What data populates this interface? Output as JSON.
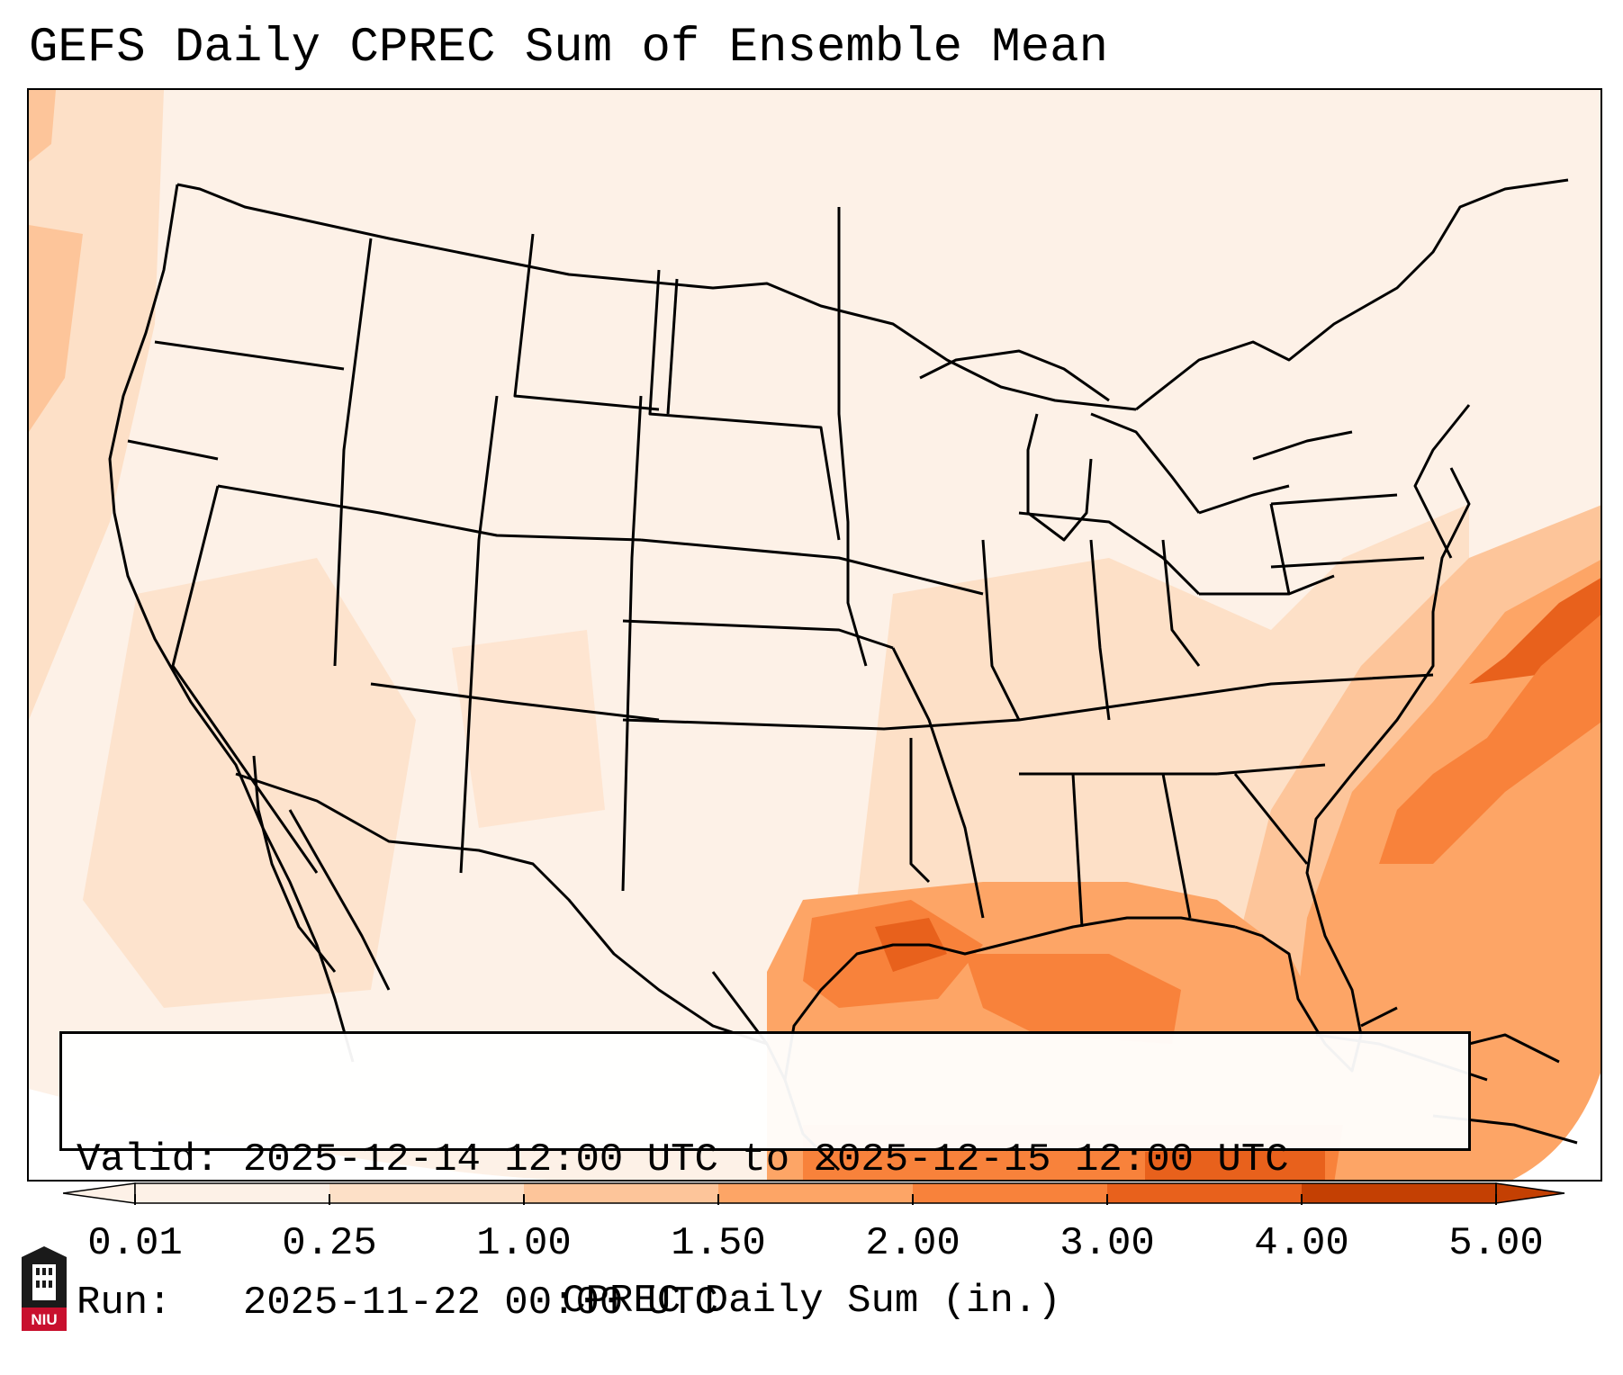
{
  "title": "GEFS Daily CPREC Sum of Ensemble Mean",
  "info": {
    "valid_label": "Valid:",
    "valid_value": "2025-12-14 12:00 UTC to 2025-12-15 12:00 UTC",
    "run_label": "Run:",
    "run_value": "2025-11-22 00:00 UTC"
  },
  "colorbar": {
    "label": "CPREC Daily Sum (in.)",
    "ticks": [
      "0.01",
      "0.25",
      "1.00",
      "1.50",
      "2.00",
      "3.00",
      "4.00",
      "5.00"
    ],
    "colors": [
      "#fdf1e7",
      "#fde0c7",
      "#fdc59a",
      "#fda566",
      "#f8823b",
      "#e8611c",
      "#c44003"
    ]
  },
  "logo": {
    "text": "NIU",
    "icon": "niu-logo"
  },
  "colors": {
    "land_line": "#000000",
    "map_background": "#fdf1e7"
  }
}
